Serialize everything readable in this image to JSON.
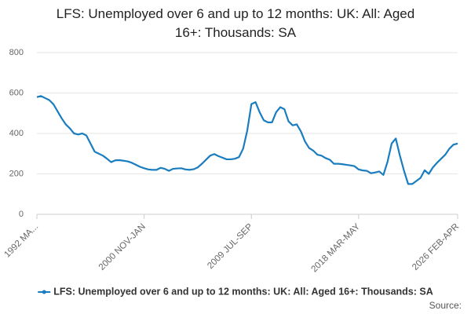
{
  "chart_data": {
    "type": "line",
    "title": "LFS: Unemployed over 6 and up to 12 months: UK: All: Aged 16+: Thousands: SA",
    "source": "Source:",
    "categories": [
      "1992 MA...",
      null,
      null,
      null,
      null,
      null,
      null,
      null,
      null,
      null,
      null,
      null,
      null,
      null,
      null,
      null,
      null,
      null,
      null,
      null,
      null,
      null,
      null,
      null,
      null,
      null,
      "2000 NOV-JAN",
      null,
      null,
      null,
      null,
      null,
      null,
      null,
      null,
      null,
      null,
      null,
      null,
      null,
      null,
      null,
      null,
      null,
      null,
      null,
      null,
      null,
      null,
      null,
      null,
      null,
      "2009 JUL-SEP",
      null,
      null,
      null,
      null,
      null,
      null,
      null,
      null,
      null,
      null,
      null,
      null,
      null,
      null,
      null,
      null,
      null,
      null,
      null,
      null,
      null,
      null,
      null,
      null,
      null,
      "2018 MAR-MAY",
      null,
      null,
      null,
      null,
      null,
      null,
      null,
      null,
      null,
      null,
      null,
      null,
      null,
      null,
      null,
      null,
      null,
      null,
      null,
      null,
      null,
      null,
      null,
      "2026 FEB-APR"
    ],
    "series": [
      {
        "name": "LFS: Unemployed over 6 and up to 12 months: UK: All: Aged 16+: Thousands: SA",
        "color": "#1a7dbf",
        "values": [
          580,
          585,
          575,
          565,
          545,
          510,
          475,
          445,
          425,
          400,
          395,
          400,
          390,
          350,
          310,
          300,
          290,
          275,
          258,
          267,
          268,
          265,
          262,
          255,
          245,
          235,
          228,
          222,
          220,
          220,
          230,
          225,
          215,
          225,
          227,
          228,
          222,
          220,
          223,
          232,
          250,
          270,
          290,
          298,
          288,
          280,
          272,
          272,
          275,
          283,
          325,
          415,
          545,
          555,
          505,
          465,
          455,
          455,
          505,
          530,
          520,
          460,
          440,
          445,
          410,
          360,
          328,
          315,
          295,
          290,
          278,
          270,
          250,
          250,
          248,
          245,
          242,
          238,
          222,
          217,
          215,
          203,
          207,
          212,
          195,
          260,
          350,
          375,
          290,
          215,
          150,
          150,
          165,
          180,
          218,
          200,
          232,
          255,
          275,
          295,
          325,
          345,
          350
        ]
      }
    ],
    "ylim": [
      0,
      800
    ],
    "yticks": [
      0,
      200,
      400,
      600,
      800
    ],
    "grid": true
  }
}
